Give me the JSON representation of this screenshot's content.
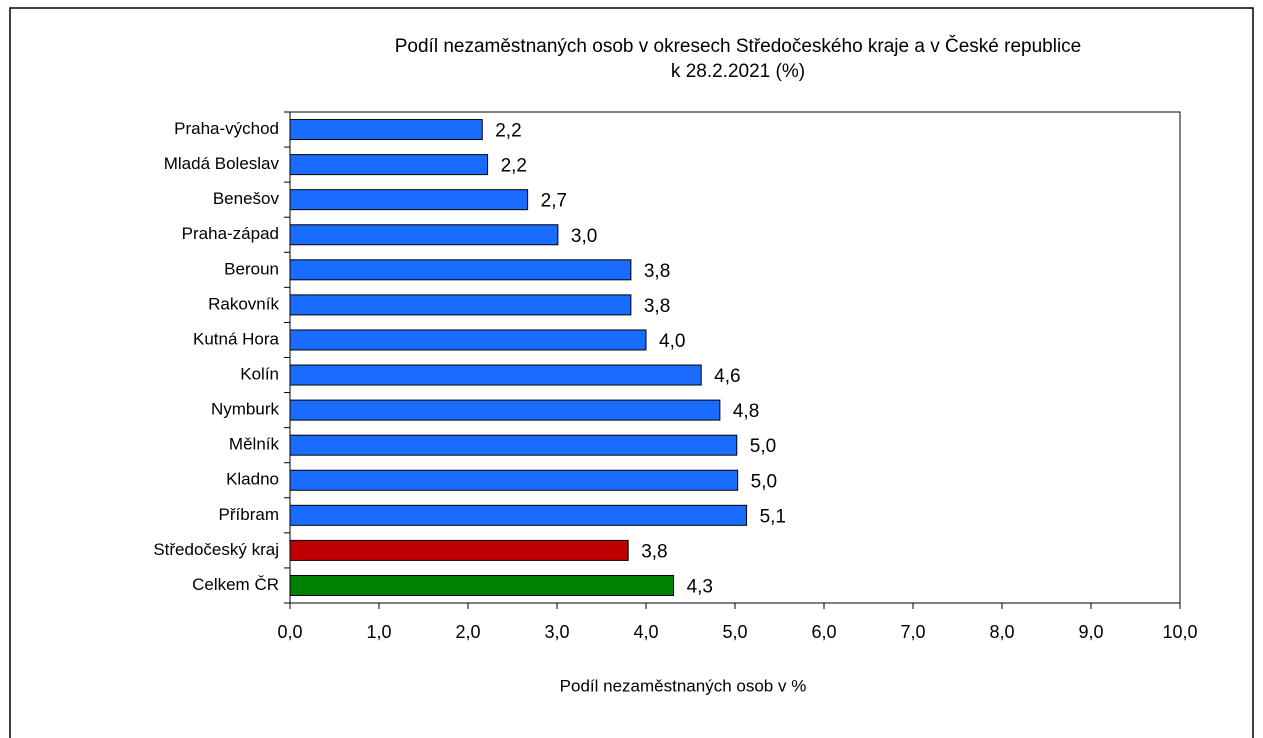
{
  "chart_data": {
    "type": "bar",
    "orientation": "horizontal",
    "title": "Podíl nezaměstnaných osob v okresech Středočeského kraje a v České republice",
    "subtitle": "k 28.2.2021 (%)",
    "x_label": "Podíl nezaměstnaných osob v %",
    "categories": [
      "Praha-východ",
      "Mladá Boleslav",
      "Benešov",
      "Praha-západ",
      "Beroun",
      "Rakovník",
      "Kutná Hora",
      "Kolín",
      "Nymburk",
      "Mělník",
      "Kladno",
      "Příbram",
      "Středočeský kraj",
      "Celkem ČR"
    ],
    "values": [
      2.16,
      2.22,
      2.67,
      3.01,
      3.83,
      3.83,
      4.0,
      4.62,
      4.83,
      5.02,
      5.03,
      5.13,
      3.8,
      4.31
    ],
    "value_labels": [
      "2,2",
      "2,2",
      "2,7",
      "3,0",
      "3,8",
      "3,8",
      "4,0",
      "4,6",
      "4,8",
      "5,0",
      "5,0",
      "5,1",
      "3,8",
      "4,3"
    ],
    "colors": [
      "#1a6cff",
      "#1a6cff",
      "#1a6cff",
      "#1a6cff",
      "#1a6cff",
      "#1a6cff",
      "#1a6cff",
      "#1a6cff",
      "#1a6cff",
      "#1a6cff",
      "#1a6cff",
      "#1a6cff",
      "#c00000",
      "#008000"
    ],
    "xlim": [
      0,
      10
    ],
    "xticks": [
      {
        "value": 0,
        "label": "0,0"
      },
      {
        "value": 1,
        "label": "1,0"
      },
      {
        "value": 2,
        "label": "2,0"
      },
      {
        "value": 3,
        "label": "3,0"
      },
      {
        "value": 4,
        "label": "4,0"
      },
      {
        "value": 5,
        "label": "5,0"
      },
      {
        "value": 6,
        "label": "6,0"
      },
      {
        "value": 7,
        "label": "7,0"
      },
      {
        "value": 8,
        "label": "8,0"
      },
      {
        "value": 9,
        "label": "9,0"
      },
      {
        "value": 10,
        "label": "10,0"
      }
    ],
    "grid": false
  }
}
